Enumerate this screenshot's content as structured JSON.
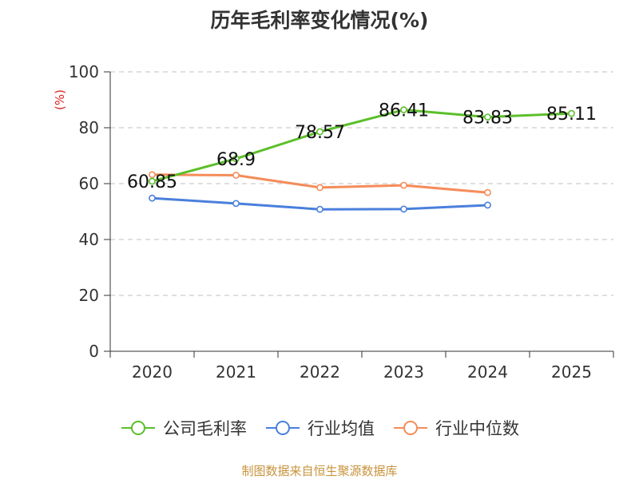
{
  "chart_data": {
    "type": "line",
    "title": "历年毛利率变化情况(%)",
    "ylabel": "(%)",
    "xlabel": "",
    "categories": [
      "2020",
      "2021",
      "2022",
      "2023",
      "2024",
      "2025"
    ],
    "ylim": [
      0,
      100
    ],
    "yticks": [
      0,
      20,
      40,
      60,
      80,
      100
    ],
    "grid": true,
    "legend_position": "bottom",
    "series": [
      {
        "name": "公司毛利率",
        "color": "#5cbf2a",
        "values": [
          60.85,
          68.9,
          78.57,
          86.41,
          83.83,
          85.11
        ],
        "labels": [
          "60.85",
          "68.9",
          "78.57",
          "86.41",
          "83.83",
          "85.11"
        ]
      },
      {
        "name": "行业均值",
        "color": "#4a7fdc",
        "values": [
          54.8,
          52.9,
          50.8,
          50.9,
          52.3,
          null
        ]
      },
      {
        "name": "行业中位数",
        "color": "#f58c5a",
        "values": [
          63.2,
          63.0,
          58.6,
          59.4,
          56.8,
          null
        ]
      }
    ]
  },
  "source_note": "制图数据来自恒生聚源数据库"
}
